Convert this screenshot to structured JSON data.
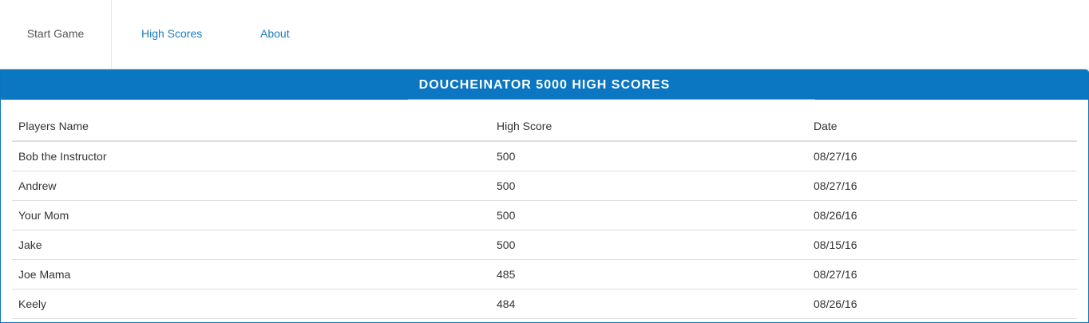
{
  "nav": {
    "items": [
      {
        "label": "Start Game"
      },
      {
        "label": "High Scores"
      },
      {
        "label": "About"
      }
    ]
  },
  "panel": {
    "title": "DOUCHEINATOR 5000 HIGH SCORES"
  },
  "table": {
    "headers": [
      "Players Name",
      "High Score",
      "Date"
    ],
    "rows": [
      [
        "Bob the Instructor",
        "500",
        "08/27/16"
      ],
      [
        "Andrew",
        "500",
        "08/27/16"
      ],
      [
        "Your Mom",
        "500",
        "08/26/16"
      ],
      [
        "Jake",
        "500",
        "08/15/16"
      ],
      [
        "Joe Mama",
        "485",
        "08/27/16"
      ],
      [
        "Keely",
        "484",
        "08/26/16"
      ]
    ]
  },
  "colors": {
    "accent": "#0b76c1",
    "link": "#1a7bbf"
  }
}
